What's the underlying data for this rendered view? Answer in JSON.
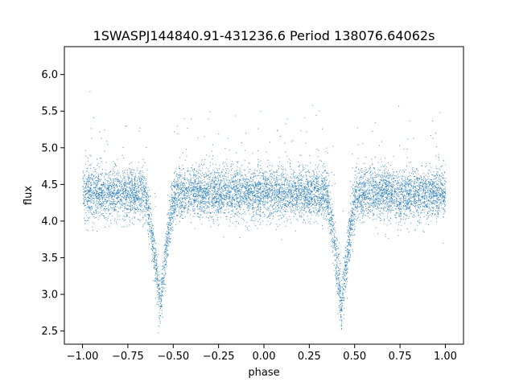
{
  "chart_data": {
    "type": "scatter",
    "title": "1SWASPJ144840.91-431236.6 Period 138076.64062s",
    "xlabel": "phase",
    "ylabel": "flux",
    "xlim": [
      -1.1,
      1.1
    ],
    "ylim": [
      2.32,
      6.38
    ],
    "grid": false,
    "legend": "none",
    "x_ticks": [
      -1.0,
      -0.75,
      -0.5,
      -0.25,
      0.0,
      0.25,
      0.5,
      0.75,
      1.0
    ],
    "x_tick_labels": [
      "−1.00",
      "−0.75",
      "−0.50",
      "−0.25",
      "0.00",
      "0.25",
      "0.50",
      "0.75",
      "1.00"
    ],
    "y_ticks": [
      2.5,
      3.0,
      3.5,
      4.0,
      4.5,
      5.0,
      5.5,
      6.0
    ],
    "y_tick_labels": [
      "2.5",
      "3.0",
      "3.5",
      "4.0",
      "4.5",
      "5.0",
      "5.5",
      "6.0"
    ],
    "series": [
      {
        "color": "#1f77b4",
        "phase_range": [
          -1.0,
          1.0
        ],
        "baseline_flux": 4.38,
        "baseline_scatter": 0.17,
        "eclipses": [
          {
            "center_phase": -0.575,
            "min_flux": 2.85,
            "half_width_phase": 0.085
          },
          {
            "center_phase": 0.425,
            "min_flux": 2.85,
            "half_width_phase": 0.085
          }
        ]
      }
    ]
  }
}
